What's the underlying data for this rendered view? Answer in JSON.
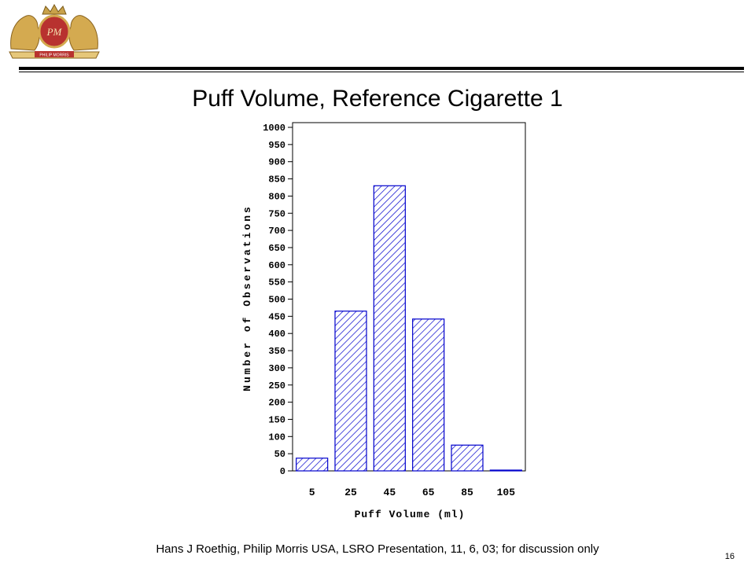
{
  "logo": {
    "monogram": "PM",
    "banner": "PHILIP MORRIS"
  },
  "chart_data": {
    "type": "bar",
    "title": "Puff Volume, Reference Cigarette 1",
    "xlabel": "Puff Volume (ml)",
    "ylabel": "Number of Observations",
    "categories": [
      "5",
      "25",
      "45",
      "65",
      "85",
      "105"
    ],
    "values": [
      37,
      465,
      830,
      442,
      75,
      2
    ],
    "ylim": [
      0,
      1000
    ],
    "yticks": [
      0,
      50,
      100,
      150,
      200,
      250,
      300,
      350,
      400,
      450,
      500,
      550,
      600,
      650,
      700,
      750,
      800,
      850,
      900,
      950,
      1000
    ],
    "bar_color": "#0000cc",
    "bar_fill": "diagonal-hatch",
    "grid": false,
    "legend": "none"
  },
  "footer": {
    "text": "Hans J Roethig, Philip Morris USA, LSRO Presentation, 11, 6, 03; for discussion only",
    "page_number": "16"
  }
}
